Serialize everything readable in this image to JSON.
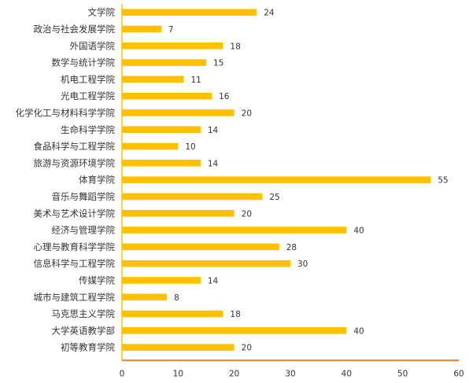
{
  "chart_data": {
    "type": "bar",
    "orientation": "horizontal",
    "categories": [
      "文学院",
      "政治与社会发展学院",
      "外国语学院",
      "数学与统计学院",
      "机电工程学院",
      "光电工程学院",
      "化学化工与材料科学学院",
      "生命科学学院",
      "食品科学与工程学院",
      "旅游与资源环境学院",
      "体育学院",
      "音乐与舞蹈学院",
      "美术与艺术设计学院",
      "经济与管理学院",
      "心理与教育科学学院",
      "信息科学与工程学院",
      "传媒学院",
      "城市与建筑工程学院",
      "马克思主义学院",
      "大学英语教学部",
      "初等教育学院"
    ],
    "values": [
      24,
      7,
      18,
      15,
      11,
      16,
      20,
      14,
      10,
      14,
      55,
      25,
      20,
      40,
      28,
      30,
      14,
      8,
      18,
      40,
      20
    ],
    "xlim": [
      0,
      60
    ],
    "xticks": [
      "0",
      "10",
      "20",
      "30",
      "40",
      "50",
      "60"
    ],
    "title": "",
    "xlabel": "",
    "ylabel": "",
    "grid": false,
    "legend": "none",
    "colors": {
      "bar": "#FFC000",
      "axis": "#ED7D31",
      "text": "#333333"
    }
  }
}
